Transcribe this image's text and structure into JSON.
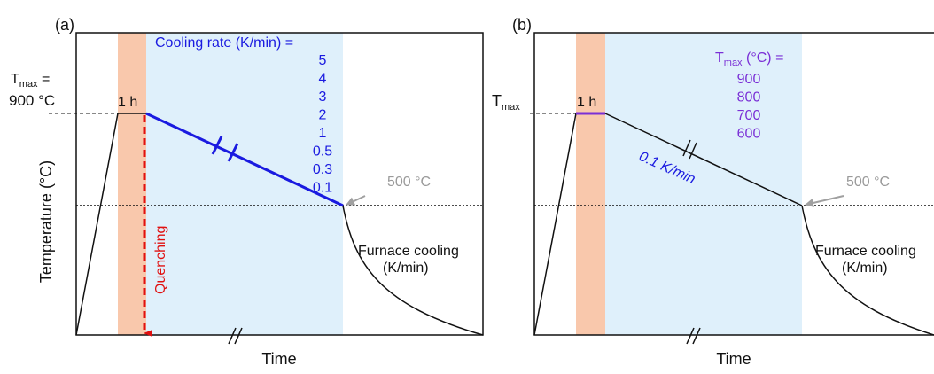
{
  "panel_a": {
    "label": "(a)",
    "tmax": {
      "main": "T",
      "sub": "max",
      "suffix": " =",
      "value": "900 °C"
    },
    "hold": "1 h",
    "cooling_rate_title": "Cooling rate (K/min) =",
    "cooling_rates": [
      "5",
      "4",
      "3",
      "2",
      "1",
      "0.5",
      "0.3",
      "0.1"
    ],
    "end_temp": "500 °C",
    "furnace": [
      "Furnace cooling",
      "(K/min)"
    ],
    "quenching": "Quenching",
    "y_label": "Temperature (°C)",
    "x_label": "Time"
  },
  "panel_b": {
    "label": "(b)",
    "tmax": {
      "main": "T",
      "sub": "max"
    },
    "hold": "1 h",
    "tmax_title": {
      "main": "T",
      "sub": "max",
      "suffix": " (°C) ="
    },
    "tmax_values": [
      "900",
      "800",
      "700",
      "600"
    ],
    "rate": "0.1 K/min",
    "end_temp": "500 °C",
    "furnace": [
      "Furnace cooling",
      "(K/min)"
    ],
    "x_label": "Time"
  }
}
